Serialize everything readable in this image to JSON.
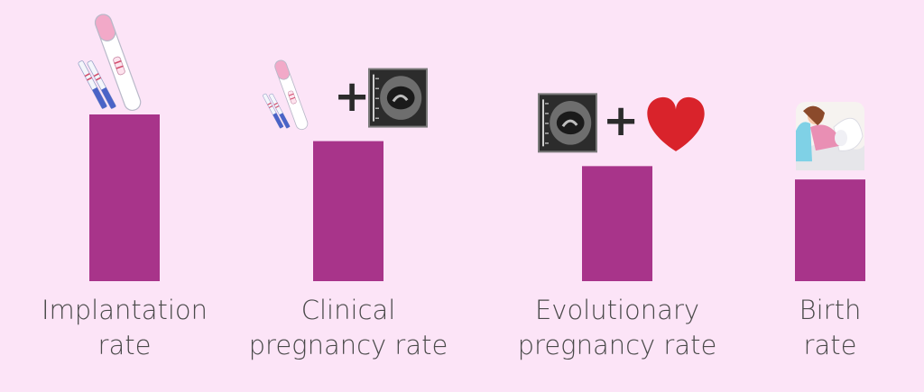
{
  "colors": {
    "background": "#fce4f7",
    "bar": "#a8348a",
    "heart": "#d9232b",
    "text": "#4a4a4a"
  },
  "plus_symbol": "+",
  "chart_data": {
    "type": "bar",
    "title": "",
    "xlabel": "",
    "ylabel": "",
    "ylim": [
      0,
      100
    ],
    "grid": false,
    "legend": "none",
    "categories": [
      "Implantation rate",
      "Clinical pregnancy rate",
      "Evolutionary pregnancy rate",
      "Birth rate"
    ],
    "category_lines": [
      [
        "Implantation",
        "rate"
      ],
      [
        "Clinical",
        "pregnancy rate"
      ],
      [
        "Evolutionary",
        "pregnancy rate"
      ],
      [
        "Birth",
        "rate"
      ]
    ],
    "values": [
      100,
      84,
      69,
      61
    ],
    "icons": [
      [
        "pregnancy-test-icon"
      ],
      [
        "pregnancy-test-icon",
        "ultrasound-icon"
      ],
      [
        "ultrasound-icon",
        "heart-icon"
      ],
      [
        "mother-baby-icon"
      ]
    ]
  }
}
